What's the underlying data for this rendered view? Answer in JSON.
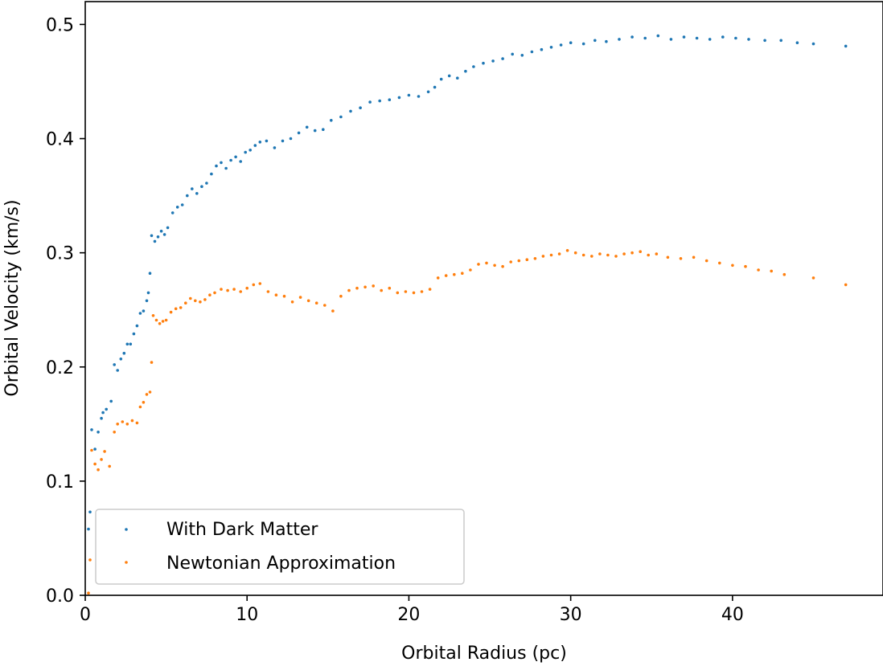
{
  "chart_data": {
    "type": "scatter",
    "title": "",
    "xlabel": "Orbital Radius (pc)",
    "ylabel": "Orbital Velocity (km/s)",
    "xlim": [
      0,
      49.3
    ],
    "ylim": [
      0,
      0.52
    ],
    "x_ticks": [
      0,
      10,
      20,
      30,
      40
    ],
    "x_tick_labels": [
      "0",
      "10",
      "20",
      "30",
      "40"
    ],
    "y_ticks": [
      0.0,
      0.1,
      0.2,
      0.3,
      0.4,
      0.5
    ],
    "y_tick_labels": [
      "0.0",
      "0.1",
      "0.2",
      "0.3",
      "0.4",
      "0.5"
    ],
    "grid": false,
    "legend_position": "lower-left",
    "series": [
      {
        "name": "With Dark Matter",
        "color": "#1f77b4",
        "points": [
          [
            0.2,
            0.058
          ],
          [
            0.3,
            0.073
          ],
          [
            0.4,
            0.145
          ],
          [
            0.6,
            0.128
          ],
          [
            0.8,
            0.143
          ],
          [
            1.0,
            0.155
          ],
          [
            1.1,
            0.16
          ],
          [
            1.3,
            0.163
          ],
          [
            1.6,
            0.17
          ],
          [
            1.8,
            0.202
          ],
          [
            2.0,
            0.197
          ],
          [
            2.2,
            0.207
          ],
          [
            2.4,
            0.212
          ],
          [
            2.6,
            0.22
          ],
          [
            2.8,
            0.22
          ],
          [
            3.0,
            0.229
          ],
          [
            3.2,
            0.236
          ],
          [
            3.4,
            0.247
          ],
          [
            3.6,
            0.249
          ],
          [
            3.8,
            0.258
          ],
          [
            3.9,
            0.265
          ],
          [
            4.0,
            0.282
          ],
          [
            4.1,
            0.315
          ],
          [
            4.3,
            0.31
          ],
          [
            4.5,
            0.314
          ],
          [
            4.7,
            0.319
          ],
          [
            4.9,
            0.316
          ],
          [
            5.1,
            0.322
          ],
          [
            5.4,
            0.335
          ],
          [
            5.7,
            0.34
          ],
          [
            6.0,
            0.342
          ],
          [
            6.3,
            0.35
          ],
          [
            6.6,
            0.356
          ],
          [
            6.9,
            0.352
          ],
          [
            7.2,
            0.358
          ],
          [
            7.5,
            0.361
          ],
          [
            7.8,
            0.369
          ],
          [
            8.1,
            0.376
          ],
          [
            8.4,
            0.379
          ],
          [
            8.7,
            0.374
          ],
          [
            9.0,
            0.381
          ],
          [
            9.3,
            0.384
          ],
          [
            9.6,
            0.38
          ],
          [
            9.9,
            0.388
          ],
          [
            10.2,
            0.39
          ],
          [
            10.5,
            0.394
          ],
          [
            10.8,
            0.397
          ],
          [
            11.2,
            0.398
          ],
          [
            11.7,
            0.392
          ],
          [
            12.2,
            0.398
          ],
          [
            12.7,
            0.4
          ],
          [
            13.2,
            0.405
          ],
          [
            13.7,
            0.41
          ],
          [
            14.2,
            0.407
          ],
          [
            14.7,
            0.408
          ],
          [
            15.2,
            0.416
          ],
          [
            15.8,
            0.419
          ],
          [
            16.4,
            0.424
          ],
          [
            17.0,
            0.427
          ],
          [
            17.6,
            0.432
          ],
          [
            18.2,
            0.433
          ],
          [
            18.8,
            0.434
          ],
          [
            19.4,
            0.436
          ],
          [
            20.0,
            0.438
          ],
          [
            20.6,
            0.437
          ],
          [
            21.2,
            0.441
          ],
          [
            21.6,
            0.445
          ],
          [
            22.0,
            0.452
          ],
          [
            22.5,
            0.455
          ],
          [
            23.0,
            0.453
          ],
          [
            23.5,
            0.459
          ],
          [
            24.0,
            0.463
          ],
          [
            24.6,
            0.466
          ],
          [
            25.2,
            0.468
          ],
          [
            25.8,
            0.47
          ],
          [
            26.4,
            0.474
          ],
          [
            27.0,
            0.473
          ],
          [
            27.6,
            0.476
          ],
          [
            28.2,
            0.478
          ],
          [
            28.8,
            0.48
          ],
          [
            29.4,
            0.482
          ],
          [
            30.0,
            0.484
          ],
          [
            30.8,
            0.483
          ],
          [
            31.5,
            0.486
          ],
          [
            32.2,
            0.485
          ],
          [
            33.0,
            0.487
          ],
          [
            33.8,
            0.489
          ],
          [
            34.6,
            0.488
          ],
          [
            35.4,
            0.49
          ],
          [
            36.2,
            0.487
          ],
          [
            37.0,
            0.489
          ],
          [
            37.8,
            0.488
          ],
          [
            38.6,
            0.487
          ],
          [
            39.4,
            0.489
          ],
          [
            40.2,
            0.488
          ],
          [
            41.0,
            0.487
          ],
          [
            42.0,
            0.486
          ],
          [
            43.0,
            0.486
          ],
          [
            44.0,
            0.484
          ],
          [
            45.0,
            0.483
          ],
          [
            47.0,
            0.481
          ]
        ]
      },
      {
        "name": "Newtonian Approximation",
        "color": "#ff7f0e",
        "points": [
          [
            0.2,
            0.002
          ],
          [
            0.3,
            0.031
          ],
          [
            0.4,
            0.127
          ],
          [
            0.6,
            0.115
          ],
          [
            0.8,
            0.11
          ],
          [
            1.0,
            0.119
          ],
          [
            1.2,
            0.126
          ],
          [
            1.5,
            0.113
          ],
          [
            1.8,
            0.143
          ],
          [
            2.0,
            0.15
          ],
          [
            2.3,
            0.152
          ],
          [
            2.6,
            0.15
          ],
          [
            2.9,
            0.153
          ],
          [
            3.2,
            0.151
          ],
          [
            3.4,
            0.165
          ],
          [
            3.6,
            0.169
          ],
          [
            3.8,
            0.176
          ],
          [
            4.0,
            0.178
          ],
          [
            4.1,
            0.204
          ],
          [
            4.2,
            0.245
          ],
          [
            4.4,
            0.241
          ],
          [
            4.6,
            0.238
          ],
          [
            4.8,
            0.24
          ],
          [
            5.0,
            0.241
          ],
          [
            5.3,
            0.248
          ],
          [
            5.6,
            0.251
          ],
          [
            5.9,
            0.252
          ],
          [
            6.2,
            0.256
          ],
          [
            6.5,
            0.26
          ],
          [
            6.8,
            0.258
          ],
          [
            7.1,
            0.257
          ],
          [
            7.4,
            0.259
          ],
          [
            7.7,
            0.263
          ],
          [
            8.0,
            0.265
          ],
          [
            8.4,
            0.268
          ],
          [
            8.8,
            0.267
          ],
          [
            9.2,
            0.268
          ],
          [
            9.6,
            0.266
          ],
          [
            10.0,
            0.269
          ],
          [
            10.4,
            0.272
          ],
          [
            10.8,
            0.273
          ],
          [
            11.3,
            0.266
          ],
          [
            11.8,
            0.263
          ],
          [
            12.3,
            0.262
          ],
          [
            12.8,
            0.257
          ],
          [
            13.3,
            0.261
          ],
          [
            13.8,
            0.258
          ],
          [
            14.3,
            0.256
          ],
          [
            14.8,
            0.254
          ],
          [
            15.3,
            0.249
          ],
          [
            15.8,
            0.262
          ],
          [
            16.3,
            0.267
          ],
          [
            16.8,
            0.269
          ],
          [
            17.3,
            0.27
          ],
          [
            17.8,
            0.271
          ],
          [
            18.3,
            0.267
          ],
          [
            18.8,
            0.269
          ],
          [
            19.3,
            0.265
          ],
          [
            19.8,
            0.266
          ],
          [
            20.3,
            0.265
          ],
          [
            20.8,
            0.266
          ],
          [
            21.3,
            0.268
          ],
          [
            21.8,
            0.278
          ],
          [
            22.3,
            0.28
          ],
          [
            22.8,
            0.281
          ],
          [
            23.3,
            0.282
          ],
          [
            23.8,
            0.285
          ],
          [
            24.3,
            0.29
          ],
          [
            24.8,
            0.291
          ],
          [
            25.3,
            0.289
          ],
          [
            25.8,
            0.288
          ],
          [
            26.3,
            0.292
          ],
          [
            26.8,
            0.293
          ],
          [
            27.3,
            0.294
          ],
          [
            27.8,
            0.295
          ],
          [
            28.3,
            0.297
          ],
          [
            28.8,
            0.298
          ],
          [
            29.3,
            0.299
          ],
          [
            29.8,
            0.302
          ],
          [
            30.3,
            0.3
          ],
          [
            30.8,
            0.298
          ],
          [
            31.3,
            0.297
          ],
          [
            31.8,
            0.299
          ],
          [
            32.3,
            0.298
          ],
          [
            32.8,
            0.297
          ],
          [
            33.3,
            0.299
          ],
          [
            33.8,
            0.3
          ],
          [
            34.3,
            0.301
          ],
          [
            34.8,
            0.298
          ],
          [
            35.3,
            0.299
          ],
          [
            36.0,
            0.296
          ],
          [
            36.8,
            0.295
          ],
          [
            37.6,
            0.296
          ],
          [
            38.4,
            0.293
          ],
          [
            39.2,
            0.291
          ],
          [
            40.0,
            0.289
          ],
          [
            40.8,
            0.288
          ],
          [
            41.6,
            0.285
          ],
          [
            42.4,
            0.284
          ],
          [
            43.2,
            0.281
          ],
          [
            45.0,
            0.278
          ],
          [
            47.0,
            0.272
          ]
        ]
      }
    ]
  }
}
